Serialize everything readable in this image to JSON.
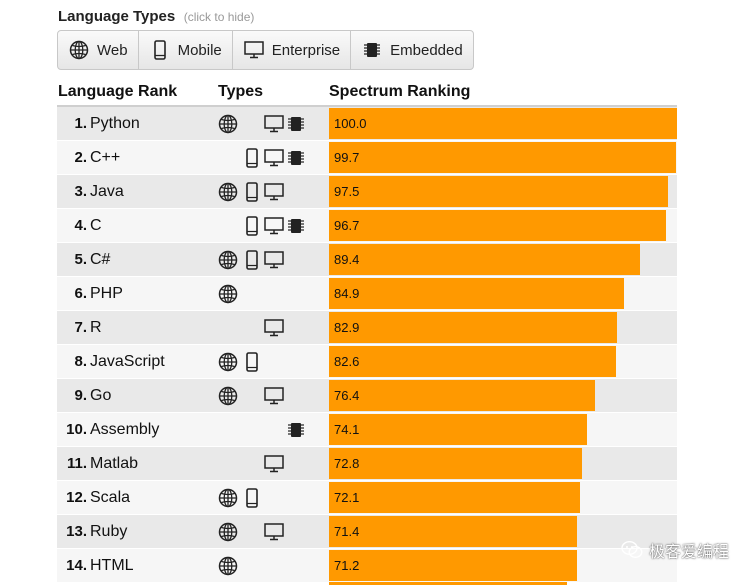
{
  "language_types": {
    "title": "Language Types",
    "hint": "(click to hide)",
    "buttons": [
      {
        "label": "Web",
        "icon": "globe-icon"
      },
      {
        "label": "Mobile",
        "icon": "phone-icon"
      },
      {
        "label": "Enterprise",
        "icon": "monitor-icon"
      },
      {
        "label": "Embedded",
        "icon": "chip-icon"
      }
    ]
  },
  "columns": {
    "rank": "Language Rank",
    "types": "Types",
    "ranking": "Spectrum Ranking"
  },
  "colors": {
    "bar": "#ff9900",
    "row_odd": "#e9e9e9",
    "row_even": "#f6f6f6"
  },
  "watermark": "极客爱编程",
  "chart_data": {
    "type": "bar",
    "orientation": "horizontal",
    "xlim": [
      0,
      100
    ],
    "categories": [
      "Python",
      "C++",
      "Java",
      "C",
      "C#",
      "PHP",
      "R",
      "JavaScript",
      "Go",
      "Assembly",
      "Matlab",
      "Scala",
      "Ruby",
      "HTML"
    ],
    "values": [
      100.0,
      99.7,
      97.5,
      96.7,
      89.4,
      84.9,
      82.9,
      82.6,
      76.4,
      74.1,
      72.8,
      72.1,
      71.4,
      71.2
    ],
    "value_labels": [
      "100.0",
      "99.7",
      "97.5",
      "96.7",
      "89.4",
      "84.9",
      "82.9",
      "82.6",
      "76.4",
      "74.1",
      "72.8",
      "72.1",
      "71.4",
      "71.2"
    ],
    "ranks": [
      "1.",
      "2.",
      "3.",
      "4.",
      "5.",
      "6.",
      "7.",
      "8.",
      "9.",
      "10.",
      "11.",
      "12.",
      "13.",
      "14."
    ],
    "types": [
      [
        "web",
        "enterprise",
        "embedded"
      ],
      [
        "mobile",
        "enterprise",
        "embedded"
      ],
      [
        "web",
        "mobile",
        "enterprise"
      ],
      [
        "mobile",
        "enterprise",
        "embedded"
      ],
      [
        "web",
        "mobile",
        "enterprise"
      ],
      [
        "web"
      ],
      [
        "enterprise"
      ],
      [
        "web",
        "mobile"
      ],
      [
        "web",
        "enterprise"
      ],
      [
        "embedded"
      ],
      [
        "enterprise"
      ],
      [
        "web",
        "mobile"
      ],
      [
        "web",
        "enterprise"
      ],
      [
        "web"
      ]
    ]
  }
}
